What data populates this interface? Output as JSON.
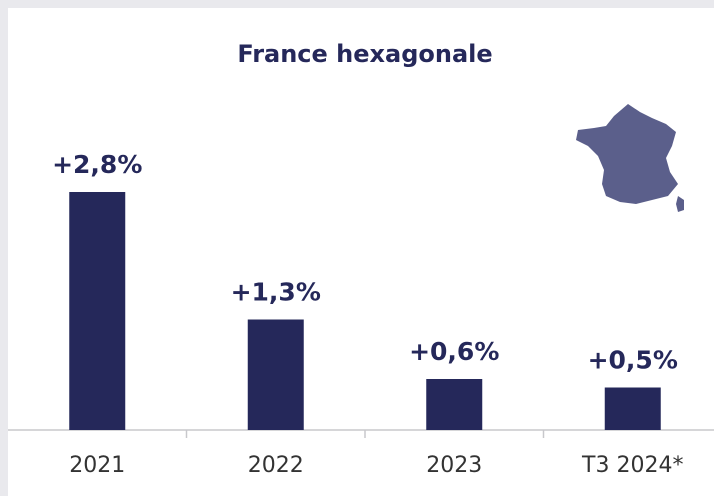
{
  "chart_data": {
    "type": "bar",
    "title": "France hexagonale",
    "categories": [
      "2021",
      "2022",
      "2023",
      "T3 2024*"
    ],
    "values": [
      2.8,
      1.3,
      0.6,
      0.5
    ],
    "value_labels": [
      "+2,8%",
      "+1,3%",
      "+0,6%",
      "+0,5%"
    ],
    "color": "#25285a"
  }
}
